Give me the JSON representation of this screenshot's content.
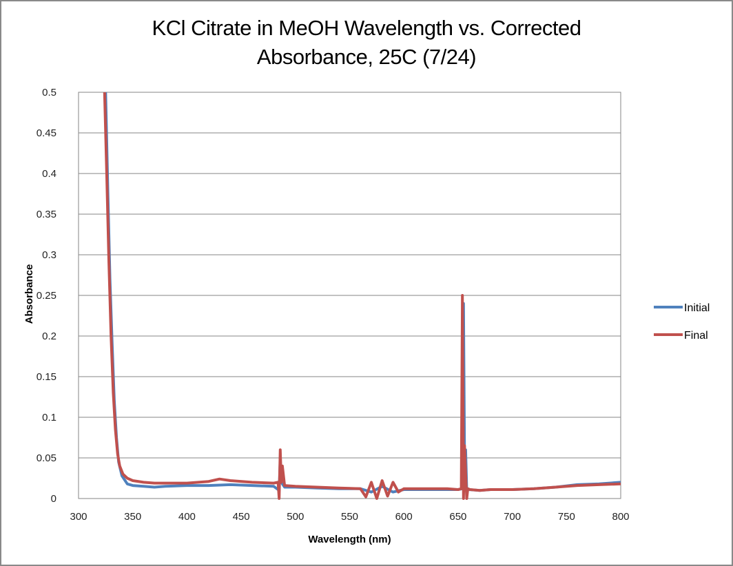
{
  "chart_data": {
    "type": "line",
    "title_line1": "KCl Citrate in MeOH Wavelength vs. Corrected",
    "title_line2": "Absorbance, 25C (7/24)",
    "xlabel": "Wavelength (nm)",
    "ylabel": "Absorbance",
    "xlim": [
      300,
      800
    ],
    "ylim": [
      0,
      0.5
    ],
    "xticks": [
      300,
      350,
      400,
      450,
      500,
      550,
      600,
      650,
      700,
      750,
      800
    ],
    "xtick_labels": [
      "300",
      "350",
      "400",
      "450",
      "500",
      "550",
      "600",
      "650",
      "700",
      "750",
      "800"
    ],
    "yticks": [
      0,
      0.05,
      0.1,
      0.15,
      0.2,
      0.25,
      0.3,
      0.35,
      0.4,
      0.45,
      0.5
    ],
    "ytick_labels": [
      "0",
      "0.05",
      "0.1",
      "0.15",
      "0.2",
      "0.25",
      "0.3",
      "0.35",
      "0.4",
      "0.45",
      "0.5"
    ],
    "grid": "horizontal",
    "legend_position": "right",
    "series": [
      {
        "name": "Initial",
        "color": "#4F81BD",
        "x": [
          325,
          327,
          329,
          331,
          333,
          335,
          337,
          340,
          345,
          350,
          360,
          370,
          380,
          400,
          420,
          440,
          460,
          480,
          485,
          486,
          487,
          490,
          500,
          520,
          540,
          560,
          570,
          580,
          590,
          600,
          620,
          640,
          650,
          654,
          655,
          656,
          657,
          658,
          660,
          670,
          680,
          700,
          720,
          740,
          760,
          780,
          800
        ],
        "y": [
          0.5,
          0.38,
          0.27,
          0.19,
          0.12,
          0.075,
          0.045,
          0.028,
          0.018,
          0.016,
          0.015,
          0.014,
          0.015,
          0.016,
          0.016,
          0.017,
          0.016,
          0.015,
          0.01,
          0.05,
          0.02,
          0.014,
          0.014,
          0.013,
          0.012,
          0.012,
          0.008,
          0.015,
          0.008,
          0.011,
          0.011,
          0.011,
          0.011,
          0.012,
          0.24,
          0.05,
          0.06,
          0.01,
          0.011,
          0.01,
          0.011,
          0.011,
          0.012,
          0.014,
          0.017,
          0.018,
          0.02
        ]
      },
      {
        "name": "Final",
        "color": "#C0504D",
        "x": [
          324,
          326,
          328,
          330,
          332,
          334,
          336,
          338,
          341,
          345,
          350,
          360,
          370,
          380,
          400,
          420,
          430,
          440,
          460,
          480,
          484,
          485,
          486,
          487,
          488,
          490,
          500,
          520,
          540,
          560,
          565,
          570,
          575,
          580,
          585,
          590,
          595,
          600,
          620,
          640,
          650,
          653,
          654,
          655,
          656,
          657,
          658,
          659,
          661,
          670,
          680,
          700,
          720,
          740,
          760,
          780,
          800
        ],
        "y": [
          0.5,
          0.4,
          0.29,
          0.2,
          0.13,
          0.085,
          0.055,
          0.04,
          0.03,
          0.025,
          0.022,
          0.02,
          0.019,
          0.019,
          0.019,
          0.021,
          0.024,
          0.022,
          0.02,
          0.019,
          0.02,
          0.0,
          0.06,
          0.02,
          0.04,
          0.016,
          0.015,
          0.014,
          0.013,
          0.012,
          0.002,
          0.02,
          0.0,
          0.022,
          0.003,
          0.02,
          0.008,
          0.012,
          0.012,
          0.012,
          0.011,
          0.012,
          0.25,
          0.0,
          0.065,
          0.03,
          0.0,
          0.012,
          0.011,
          0.01,
          0.011,
          0.011,
          0.012,
          0.014,
          0.016,
          0.017,
          0.018
        ]
      }
    ]
  }
}
